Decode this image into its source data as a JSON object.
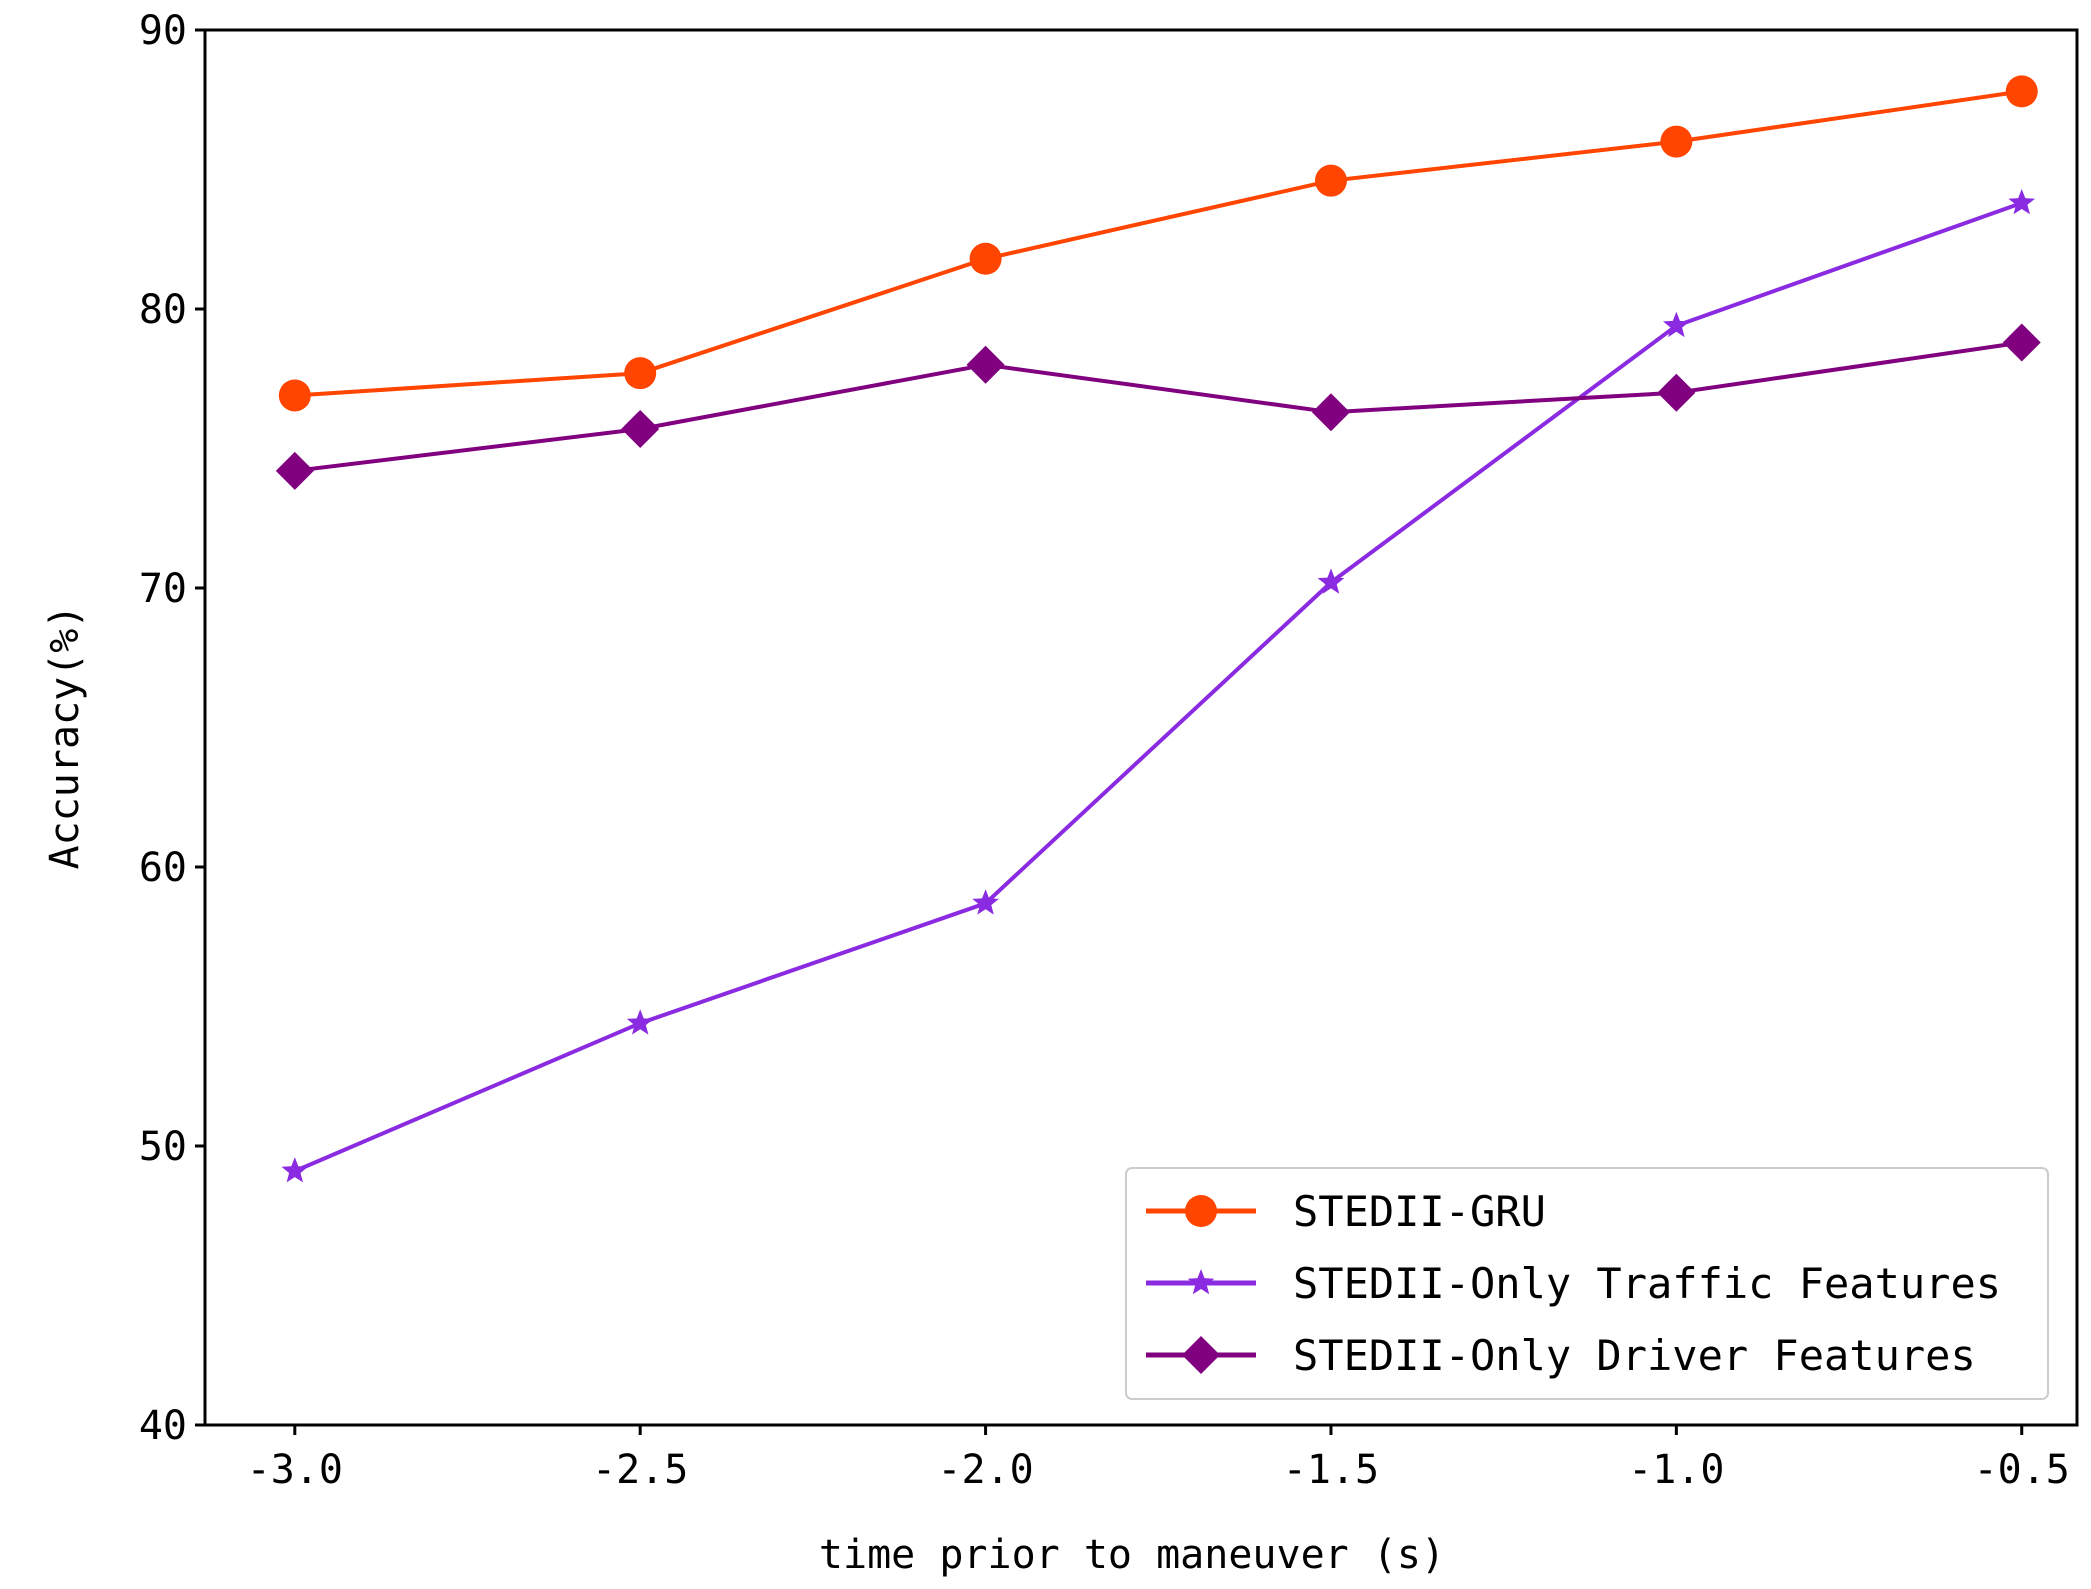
{
  "chart_data": {
    "type": "line",
    "title": "",
    "xlabel": "time prior to maneuver (s)",
    "ylabel": "Accuracy(%)",
    "x": [
      -3.0,
      -2.5,
      -2.0,
      -1.5,
      -1.0,
      -0.5
    ],
    "x_tick_labels": [
      "-3.0",
      "-2.5",
      "-2.0",
      "-1.5",
      "-1.0",
      "-0.5"
    ],
    "y_ticks": [
      40,
      50,
      60,
      70,
      80,
      90
    ],
    "y_tick_labels": [
      "40",
      "50",
      "60",
      "70",
      "80",
      "90"
    ],
    "xlim": [
      -3.13,
      -0.42
    ],
    "ylim": [
      40,
      90
    ],
    "grid": false,
    "legend_position": "lower-right",
    "series": [
      {
        "name": "STEDII-GRU",
        "color": "#ff4500",
        "marker": "circle",
        "values": [
          76.9,
          77.7,
          81.8,
          84.6,
          86.0,
          87.8
        ]
      },
      {
        "name": "STEDII-Only Traffic Features",
        "color": "#8a2be2",
        "marker": "star",
        "values": [
          49.1,
          54.4,
          58.7,
          70.2,
          79.4,
          83.8
        ]
      },
      {
        "name": "STEDII-Only Driver Features",
        "color": "#800080",
        "marker": "diamond",
        "values": [
          74.2,
          75.7,
          78.0,
          76.3,
          77.0,
          78.8
        ]
      }
    ]
  }
}
